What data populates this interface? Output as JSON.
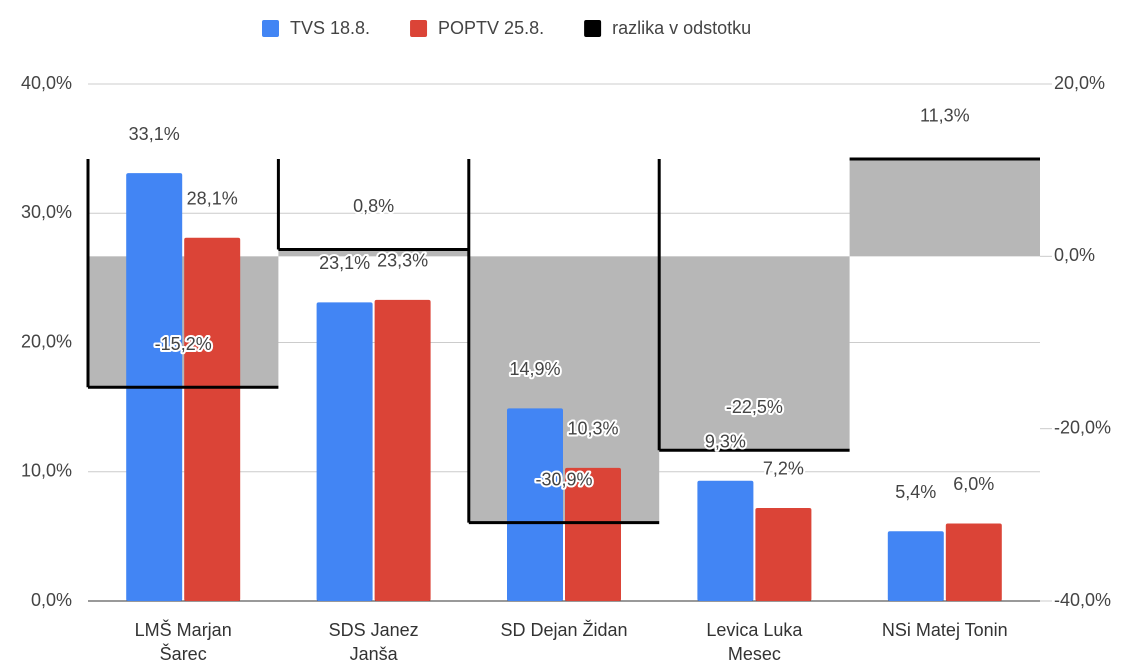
{
  "chart_data": {
    "type": "bar",
    "categories": [
      "LMŠ Marjan Šarec",
      "SDS Janez Janša",
      "SD Dejan Židan",
      "Levica Luka Mesec",
      "NSi Matej Tonin"
    ],
    "series": [
      {
        "name": "TVS 18.8.",
        "color": "#4285f4",
        "values": [
          33.1,
          23.1,
          14.9,
          9.3,
          5.4
        ],
        "value_labels": [
          "33,1%",
          "23,1%",
          "14,9%",
          "9,3%",
          "5,4%"
        ]
      },
      {
        "name": "POPTV 25.8.",
        "color": "#db4437",
        "values": [
          28.1,
          23.3,
          10.3,
          7.2,
          6.0
        ],
        "value_labels": [
          "28,1%",
          "23,3%",
          "10,3%",
          "7,2%",
          "6,0%"
        ]
      },
      {
        "name": "razlika v odstotku",
        "color": "#000000",
        "fill": "#b7b7b7",
        "type": "steppedArea",
        "axis": "y2",
        "values": [
          -15.2,
          0.8,
          -30.9,
          -22.5,
          11.3
        ],
        "value_labels": [
          "-15,2%",
          "0,8%",
          "-30,9%",
          "-22,5%",
          "11,3%"
        ]
      }
    ],
    "ylim": [
      0,
      40
    ],
    "yticks": [
      {
        "value": 0,
        "label": "0,0%"
      },
      {
        "value": 10,
        "label": "10,0%"
      },
      {
        "value": 20,
        "label": "20,0%"
      },
      {
        "value": 30,
        "label": "30,0%"
      },
      {
        "value": 40,
        "label": "40,0%"
      }
    ],
    "y2lim": [
      -40,
      20
    ],
    "y2ticks": [
      {
        "value": -40,
        "label": "-40,0%"
      },
      {
        "value": -20,
        "label": "-20,0%"
      },
      {
        "value": 0,
        "label": "0,0%"
      },
      {
        "value": 20,
        "label": "20,0%"
      }
    ],
    "grid": true,
    "legend": "top"
  }
}
